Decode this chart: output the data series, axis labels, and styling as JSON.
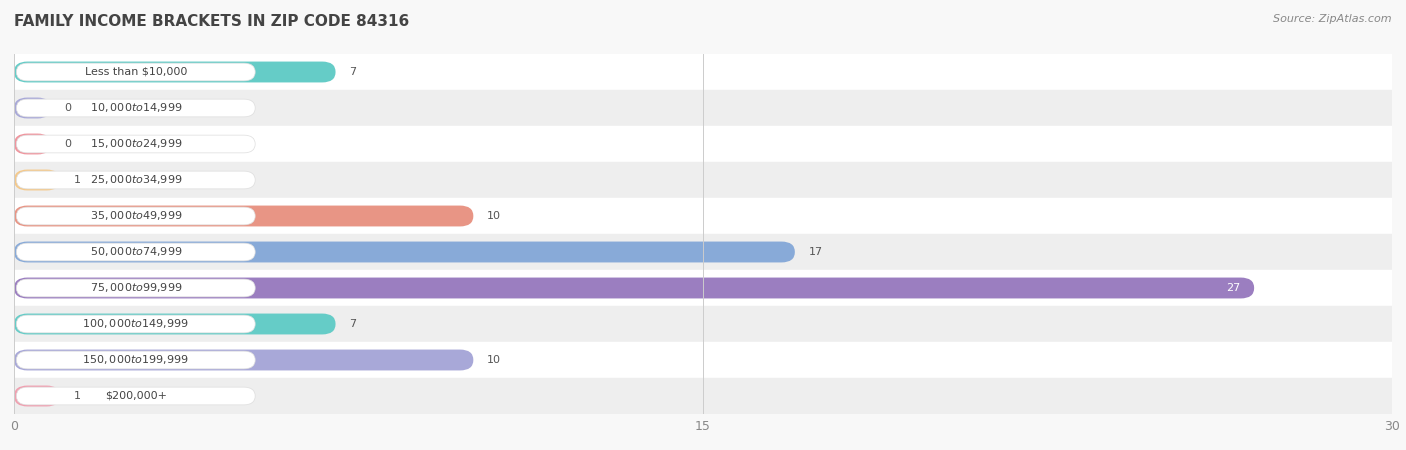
{
  "title": "FAMILY INCOME BRACKETS IN ZIP CODE 84316",
  "source": "Source: ZipAtlas.com",
  "categories": [
    "Less than $10,000",
    "$10,000 to $14,999",
    "$15,000 to $24,999",
    "$25,000 to $34,999",
    "$35,000 to $49,999",
    "$50,000 to $74,999",
    "$75,000 to $99,999",
    "$100,000 to $149,999",
    "$150,000 to $199,999",
    "$200,000+"
  ],
  "values": [
    7,
    0,
    0,
    1,
    10,
    17,
    27,
    7,
    10,
    1
  ],
  "bar_colors": [
    "#65ccc7",
    "#a8a8d8",
    "#f0959e",
    "#f5c98a",
    "#e89585",
    "#88aad8",
    "#9b7ec0",
    "#65ccc7",
    "#a8a8d8",
    "#f0a0b0"
  ],
  "label_bg_color": "#ffffff",
  "xlim": [
    0,
    30
  ],
  "xticks": [
    0,
    15,
    30
  ],
  "bar_height": 0.58,
  "row_colors": [
    "#ffffff",
    "#eeeeee"
  ],
  "background_color": "#f8f8f8",
  "title_fontsize": 11,
  "source_fontsize": 8,
  "label_fontsize": 8,
  "value_fontsize": 8,
  "value_color_inside": "#ffffff",
  "value_color_outside": "#555555",
  "text_color": "#444444",
  "min_bar_for_label": 3
}
